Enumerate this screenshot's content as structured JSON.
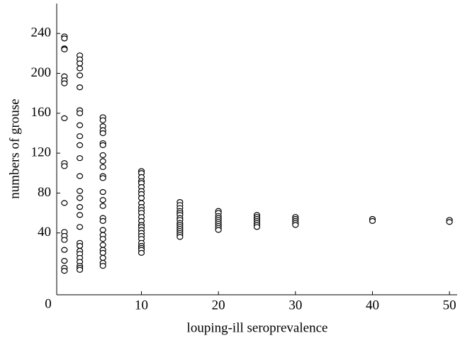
{
  "chart_data": {
    "type": "scatter",
    "x_label": "louping-ill seroprevalence",
    "y_label": "numbers of grouse",
    "origin_label": "0",
    "xlim": [
      -1,
      51
    ],
    "xticks": [
      10,
      20,
      30,
      40,
      50
    ],
    "ylim": [
      -22,
      270
    ],
    "yticks": [
      40,
      80,
      120,
      160,
      200,
      240
    ],
    "marker_color": "#000000",
    "x": [
      0,
      0,
      0,
      0,
      0,
      0,
      0,
      0,
      0,
      0,
      0,
      0,
      0,
      0,
      0,
      0,
      0,
      0,
      2,
      2,
      2,
      2,
      2,
      2,
      2,
      2,
      2,
      2,
      2,
      2,
      2,
      2,
      2,
      2,
      2,
      2,
      2,
      2,
      2,
      2,
      2,
      2,
      2,
      2,
      2,
      5,
      5,
      5,
      5,
      5,
      5,
      5,
      5,
      5,
      5,
      5,
      5,
      5,
      5,
      5,
      5,
      5,
      5,
      5,
      5,
      5,
      5,
      5,
      5,
      5,
      5,
      10,
      10,
      10,
      10,
      10,
      10,
      10,
      10,
      10,
      10,
      10,
      10,
      10,
      10,
      10,
      10,
      10,
      10,
      10,
      10,
      10,
      10,
      10,
      10,
      10,
      10,
      15,
      15,
      15,
      15,
      15,
      15,
      15,
      15,
      15,
      15,
      15,
      15,
      15,
      15,
      15,
      15,
      20,
      20,
      20,
      20,
      20,
      20,
      20,
      20,
      20,
      20,
      25,
      25,
      25,
      25,
      25,
      25,
      25,
      30,
      30,
      30,
      30,
      30,
      40,
      40,
      50,
      50
    ],
    "values": [
      237,
      235,
      225,
      224,
      197,
      193,
      190,
      155,
      110,
      107,
      70,
      41,
      37,
      33,
      23,
      12,
      5,
      2,
      218,
      214,
      210,
      205,
      198,
      186,
      163,
      160,
      148,
      137,
      128,
      115,
      97,
      82,
      75,
      66,
      58,
      46,
      30,
      27,
      22,
      19,
      15,
      11,
      7,
      5,
      3,
      156,
      153,
      147,
      143,
      140,
      130,
      128,
      118,
      112,
      106,
      97,
      95,
      81,
      73,
      67,
      55,
      52,
      43,
      38,
      34,
      28,
      23,
      20,
      15,
      10,
      7,
      102,
      100,
      96,
      92,
      90,
      86,
      82,
      79,
      75,
      70,
      66,
      63,
      60,
      56,
      52,
      48,
      46,
      43,
      40,
      37,
      34,
      30,
      27,
      25,
      23,
      20,
      71,
      68,
      65,
      62,
      60,
      58,
      55,
      53,
      50,
      48,
      46,
      44,
      42,
      40,
      38,
      36,
      62,
      60,
      57,
      55,
      53,
      51,
      49,
      47,
      45,
      43,
      58,
      56,
      54,
      52,
      50,
      48,
      46,
      56,
      54,
      52,
      50,
      48,
      54,
      52,
      53,
      51
    ]
  }
}
